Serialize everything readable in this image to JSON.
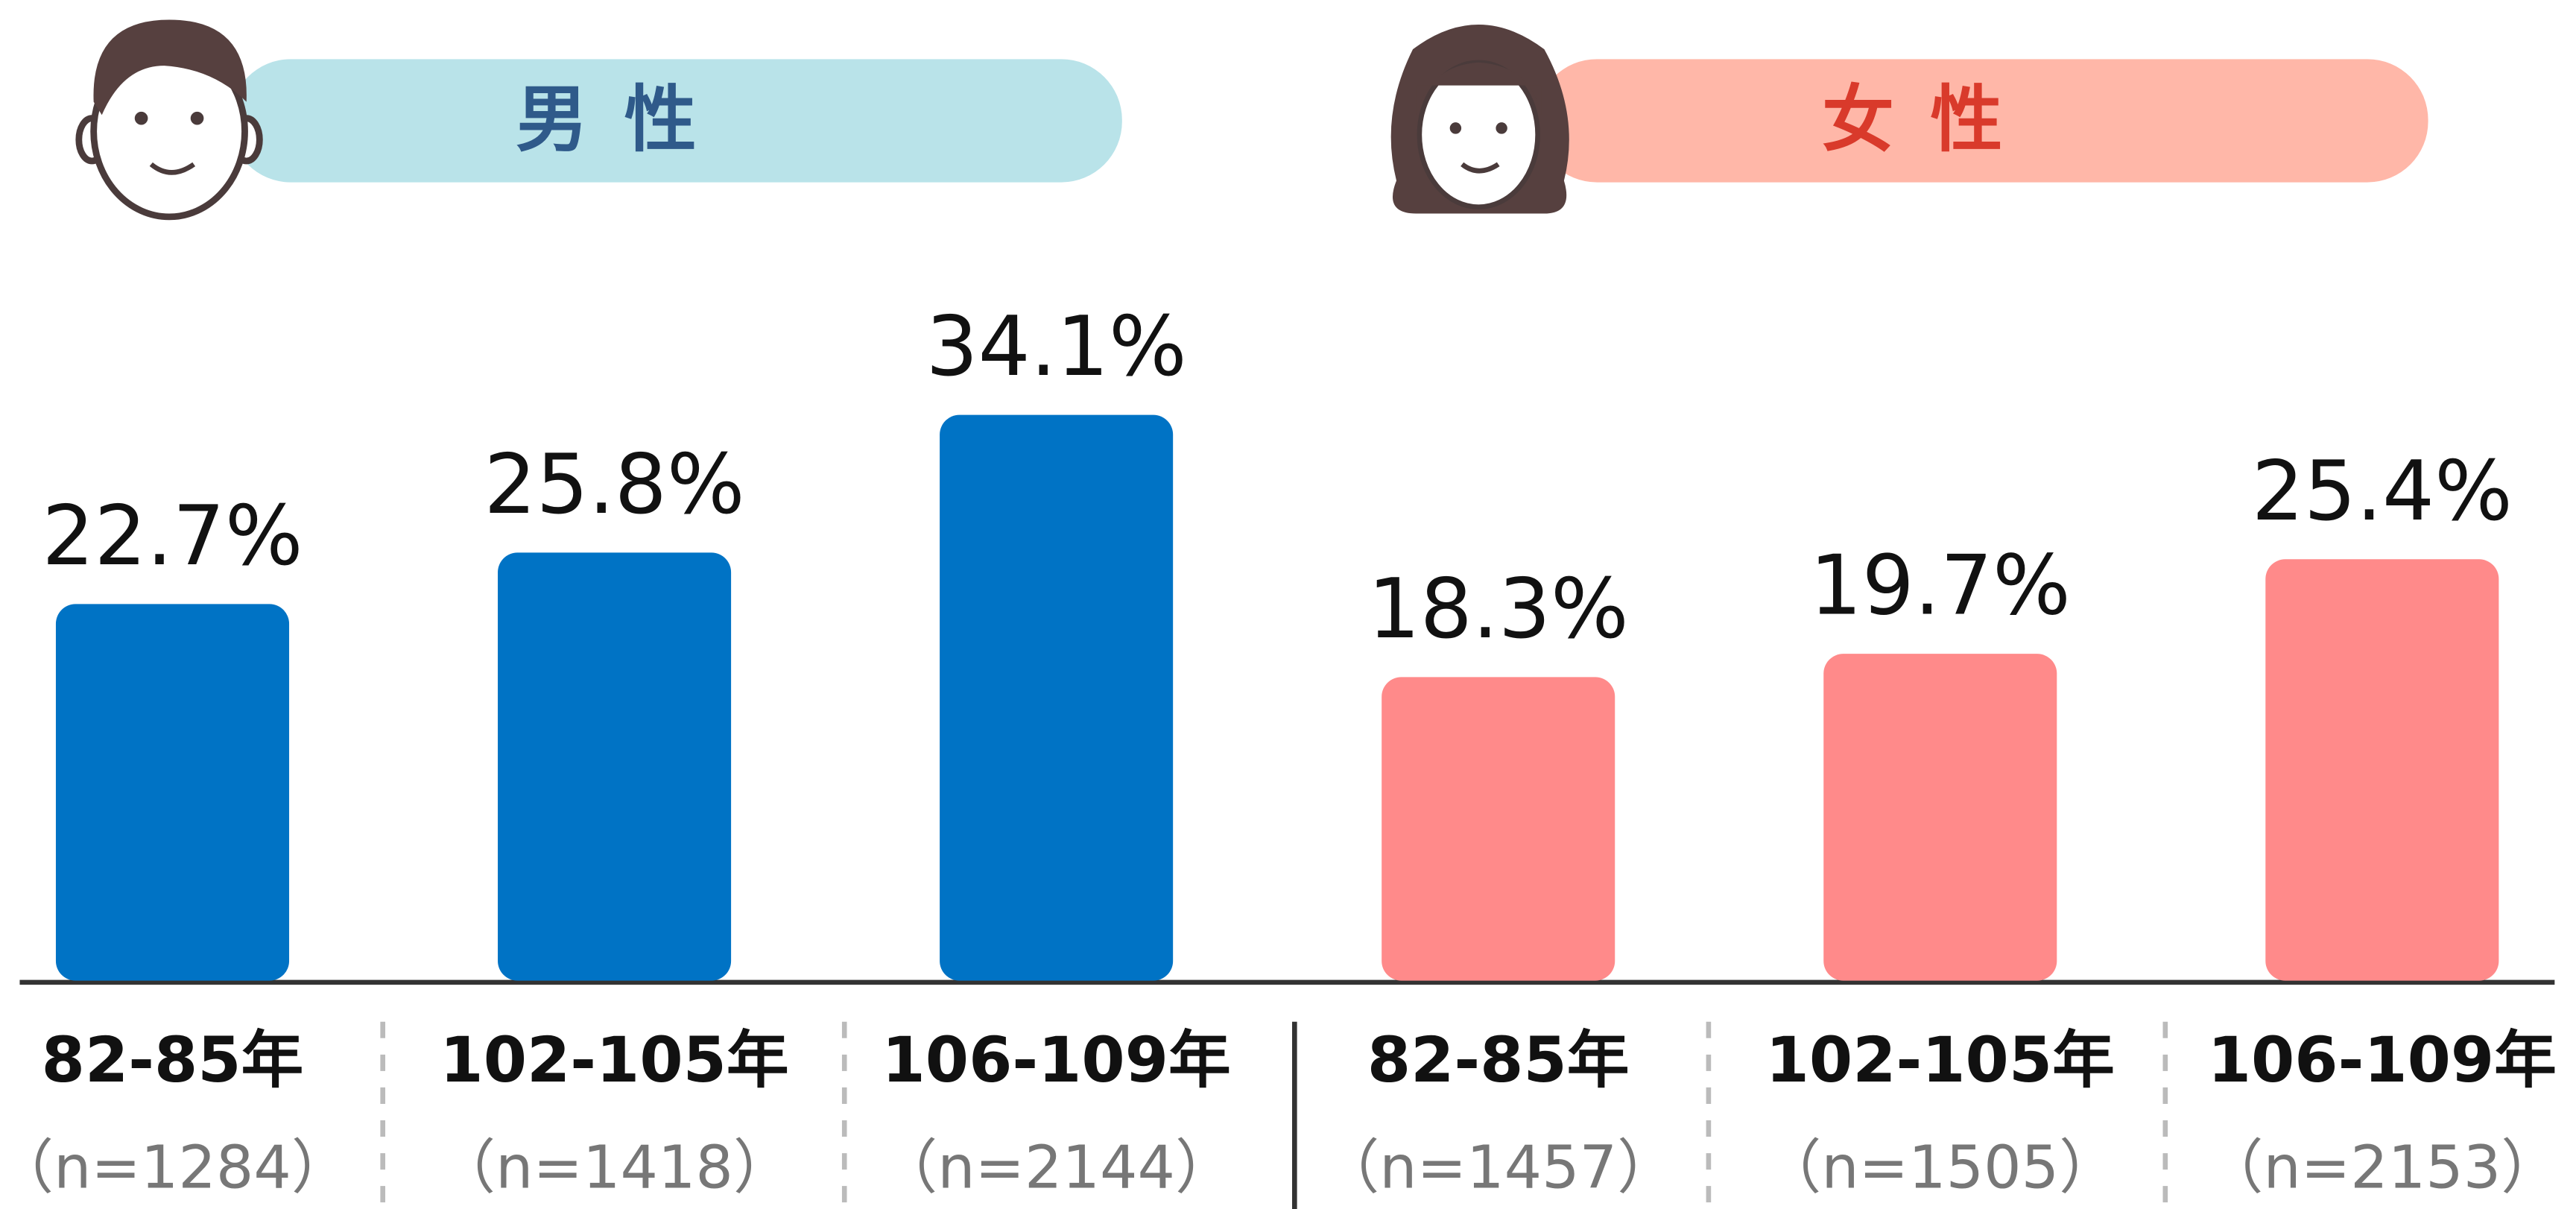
{
  "chart_data": [
    {
      "type": "bar",
      "title": "男性",
      "title_color": "#2f5a8a",
      "banner_color": "#b9e3e9",
      "categories": [
        "82-85年",
        "102-105年",
        "106-109年"
      ],
      "sample_sizes": [
        "（n=1284）",
        "（n=1418）",
        "（n=2144）"
      ],
      "values": [
        22.7,
        25.8,
        34.1
      ],
      "value_labels": [
        "22.7%",
        "25.8%",
        "34.1%"
      ],
      "color": "#0073c5"
    },
    {
      "type": "bar",
      "title": "女性",
      "title_color": "#d93a2b",
      "banner_color": "#ffb7a8",
      "categories": [
        "82-85年",
        "102-105年",
        "106-109年"
      ],
      "sample_sizes": [
        "（n=1457）",
        "（n=1505）",
        "（n=2153）"
      ],
      "values": [
        18.3,
        19.7,
        25.4
      ],
      "value_labels": [
        "18.3%",
        "19.7%",
        "25.4%"
      ],
      "color": "#ff8a8a"
    }
  ]
}
